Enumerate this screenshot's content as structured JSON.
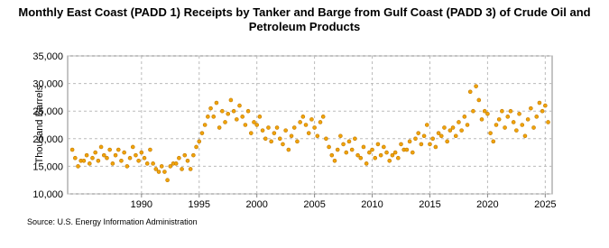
{
  "chart_data": {
    "type": "scatter",
    "title": "Monthly East Coast (PADD 1) Receipts by Tanker and Barge from Gulf Coast (PADD 3) of Crude Oil and Petroleum Products",
    "y_label": "Thousand Barrels",
    "source": "Source: U.S. Energy Information Administration",
    "color": "#f0a30a",
    "grid": true,
    "xlim": [
      1983.6,
      2025.6
    ],
    "ylim": [
      10000,
      35000
    ],
    "xticks": [
      1990,
      1995,
      2000,
      2005,
      2010,
      2015,
      2020,
      2025
    ],
    "yticks": [
      {
        "value": 10000,
        "label": "10,000"
      },
      {
        "value": 15000,
        "label": "15,000"
      },
      {
        "value": 20000,
        "label": "20,000"
      },
      {
        "value": 25000,
        "label": "25,000"
      },
      {
        "value": 30000,
        "label": "30,000"
      },
      {
        "value": 35000,
        "label": "35,000"
      }
    ],
    "x": [
      1984,
      1984.25,
      1984.5,
      1984.75,
      1985,
      1985.25,
      1985.5,
      1985.75,
      1986,
      1986.25,
      1986.5,
      1986.75,
      1987,
      1987.25,
      1987.5,
      1987.75,
      1988,
      1988.25,
      1988.5,
      1988.75,
      1989,
      1989.25,
      1989.5,
      1989.75,
      1990,
      1990.25,
      1990.5,
      1990.75,
      1991,
      1991.25,
      1991.5,
      1991.75,
      1992,
      1992.25,
      1992.5,
      1992.75,
      1993,
      1993.25,
      1993.5,
      1993.75,
      1994,
      1994.25,
      1994.5,
      1994.75,
      1995,
      1995.25,
      1995.5,
      1995.75,
      1996,
      1996.25,
      1996.5,
      1996.75,
      1997,
      1997.25,
      1997.5,
      1997.75,
      1998,
      1998.25,
      1998.5,
      1998.75,
      1999,
      1999.25,
      1999.5,
      1999.75,
      2000,
      2000.25,
      2000.5,
      2000.75,
      2001,
      2001.25,
      2001.5,
      2001.75,
      2002,
      2002.25,
      2002.5,
      2002.75,
      2003,
      2003.25,
      2003.5,
      2003.75,
      2004,
      2004.25,
      2004.5,
      2004.75,
      2005,
      2005.25,
      2005.5,
      2005.75,
      2006,
      2006.25,
      2006.5,
      2006.75,
      2007,
      2007.25,
      2007.5,
      2007.75,
      2008,
      2008.25,
      2008.5,
      2008.75,
      2009,
      2009.25,
      2009.5,
      2009.75,
      2010,
      2010.25,
      2010.5,
      2010.75,
      2011,
      2011.25,
      2011.5,
      2011.75,
      2012,
      2012.25,
      2012.5,
      2012.75,
      2013,
      2013.25,
      2013.5,
      2013.75,
      2014,
      2014.25,
      2014.5,
      2014.75,
      2015,
      2015.25,
      2015.5,
      2015.75,
      2016,
      2016.25,
      2016.5,
      2016.75,
      2017,
      2017.25,
      2017.5,
      2017.75,
      2018,
      2018.25,
      2018.5,
      2018.75,
      2019,
      2019.25,
      2019.5,
      2019.75,
      2020,
      2020.25,
      2020.5,
      2020.75,
      2021,
      2021.25,
      2021.5,
      2021.75,
      2022,
      2022.25,
      2022.5,
      2022.75,
      2023,
      2023.25,
      2023.5,
      2023.75,
      2024,
      2024.25,
      2024.5,
      2024.75,
      2025,
      2025.25
    ],
    "values": [
      18000,
      16500,
      15000,
      16000,
      16000,
      17000,
      15500,
      16500,
      17500,
      16000,
      18500,
      17000,
      16500,
      18000,
      15500,
      17000,
      18000,
      16000,
      17500,
      15000,
      16500,
      18500,
      17000,
      16000,
      17500,
      16500,
      15500,
      18000,
      15500,
      14500,
      14000,
      15000,
      14000,
      12500,
      15000,
      15500,
      15500,
      16500,
      14500,
      17000,
      16000,
      14500,
      17000,
      18500,
      19500,
      21000,
      22500,
      24000,
      25500,
      24000,
      26500,
      22000,
      25000,
      23000,
      24500,
      27000,
      25000,
      23500,
      26000,
      24000,
      22500,
      25000,
      21000,
      23000,
      22500,
      24000,
      21500,
      20000,
      22000,
      19500,
      21000,
      22000,
      20000,
      19000,
      21500,
      18000,
      20500,
      22000,
      19500,
      23000,
      24000,
      22500,
      21000,
      23500,
      22000,
      20500,
      23000,
      24000,
      20000,
      18500,
      17000,
      16000,
      18000,
      20500,
      19000,
      17500,
      19500,
      18000,
      20000,
      17000,
      16500,
      18500,
      15500,
      17500,
      18000,
      16500,
      19000,
      17000,
      18500,
      17500,
      16000,
      17000,
      17500,
      16500,
      19000,
      18000,
      18000,
      19500,
      17500,
      20000,
      21000,
      19000,
      20500,
      22500,
      19000,
      20000,
      18500,
      21000,
      20500,
      22000,
      19500,
      21500,
      22000,
      20500,
      23000,
      21500,
      24000,
      22500,
      28500,
      25000,
      29500,
      27000,
      23500,
      25000,
      24500,
      21000,
      19500,
      22500,
      23500,
      25000,
      22000,
      24000,
      25000,
      23000,
      21500,
      24500,
      22500,
      20500,
      23500,
      25500,
      22000,
      24000,
      26500,
      25000,
      26000,
      23000
    ]
  }
}
